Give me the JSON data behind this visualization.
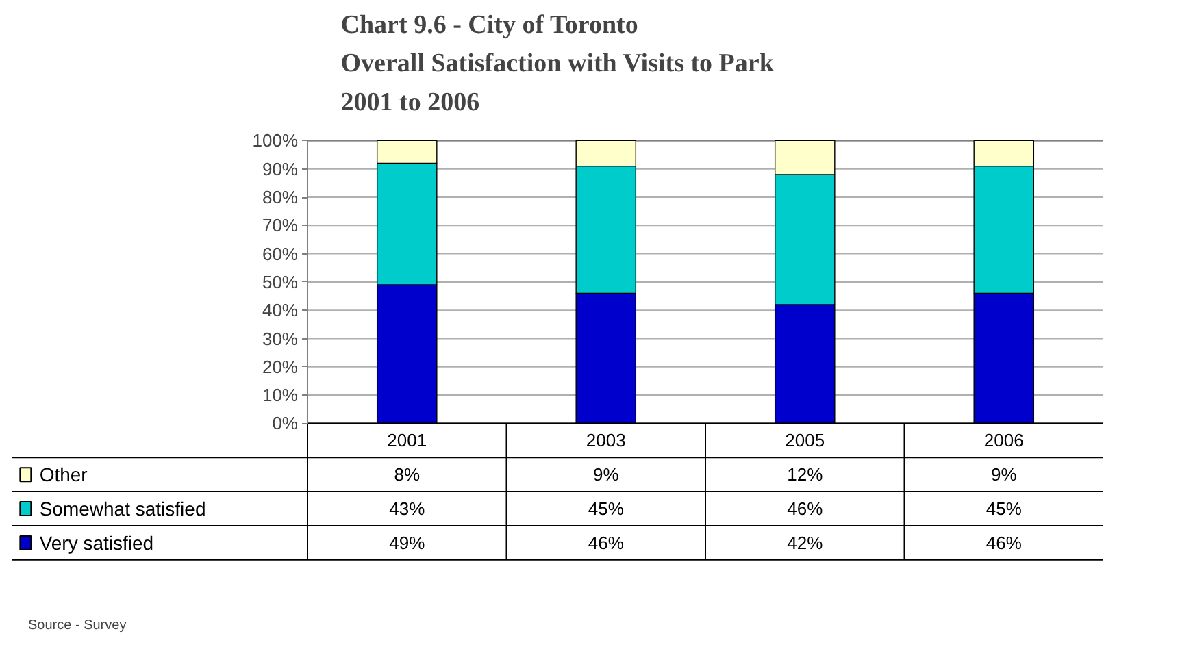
{
  "chart_data": {
    "type": "bar",
    "stacked": true,
    "title": "Chart 9.6 - City of Toronto\nOverall Satisfaction with Visits to Park\n2001 to 2006",
    "categories": [
      "2001",
      "2003",
      "2005",
      "2006"
    ],
    "series": [
      {
        "name": "Very satisfied",
        "color": "#0000cc",
        "values": [
          49,
          46,
          42,
          46
        ],
        "value_labels": [
          "49%",
          "46%",
          "42%",
          "46%"
        ]
      },
      {
        "name": "Somewhat satisfied",
        "color": "#00cccc",
        "values": [
          43,
          45,
          46,
          45
        ],
        "value_labels": [
          "43%",
          "45%",
          "46%",
          "45%"
        ]
      },
      {
        "name": "Other",
        "color": "#ffffcc",
        "values": [
          8,
          9,
          12,
          9
        ],
        "value_labels": [
          "8%",
          "9%",
          "12%",
          "9%"
        ]
      }
    ],
    "ylim": [
      0,
      100
    ],
    "yticks": [
      {
        "value": 0,
        "label": "0%"
      },
      {
        "value": 10,
        "label": "10%"
      },
      {
        "value": 20,
        "label": "20%"
      },
      {
        "value": 30,
        "label": "30%"
      },
      {
        "value": 40,
        "label": "40%"
      },
      {
        "value": 50,
        "label": "50%"
      },
      {
        "value": 60,
        "label": "60%"
      },
      {
        "value": 70,
        "label": "70%"
      },
      {
        "value": 80,
        "label": "80%"
      },
      {
        "value": 90,
        "label": "90%"
      },
      {
        "value": 100,
        "label": "100%"
      }
    ],
    "grid": "y",
    "legend": "bottom",
    "annotations": [
      "Source - Survey"
    ]
  }
}
